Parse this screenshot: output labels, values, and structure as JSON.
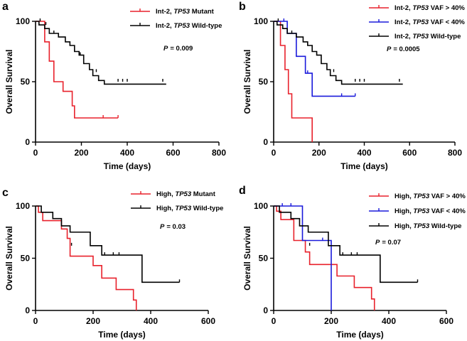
{
  "chart_data": [
    {
      "type": "line",
      "panel": "a",
      "xlabel": "Time (days)",
      "ylabel": "Overall Survival",
      "xlim": [
        0,
        800
      ],
      "ylim": [
        0,
        100
      ],
      "xticks": [
        0,
        200,
        400,
        600,
        800
      ],
      "yticks": [
        0,
        50,
        100
      ],
      "pvalue": {
        "label": "P",
        "value": "= 0.009"
      },
      "series": [
        {
          "name_prefix": "Int-2, ",
          "name_gene": "TP53",
          "name_suffix": " Mutant",
          "color": "#e8212b",
          "steps": [
            [
              0,
              100
            ],
            [
              40,
              83
            ],
            [
              60,
              67
            ],
            [
              80,
              50
            ],
            [
              120,
              42
            ],
            [
              160,
              30
            ],
            [
              170,
              20
            ],
            [
              360,
              20
            ]
          ],
          "censors": [
            [
              295,
              20
            ],
            [
              360,
              20
            ]
          ]
        },
        {
          "name_prefix": "Int-2, ",
          "name_gene": "TP53",
          "name_suffix": " Wild-type",
          "color": "#000000",
          "steps": [
            [
              0,
              100
            ],
            [
              15,
              97
            ],
            [
              40,
              94
            ],
            [
              60,
              90
            ],
            [
              100,
              87
            ],
            [
              130,
              83
            ],
            [
              150,
              80
            ],
            [
              170,
              75
            ],
            [
              190,
              72
            ],
            [
              210,
              65
            ],
            [
              235,
              60
            ],
            [
              250,
              55
            ],
            [
              275,
              51
            ],
            [
              300,
              48
            ],
            [
              570,
              48
            ]
          ],
          "censors": [
            [
              20,
              100
            ],
            [
              45,
              97
            ],
            [
              80,
              90
            ],
            [
              170,
              75
            ],
            [
              195,
              72
            ],
            [
              265,
              58
            ],
            [
              360,
              50
            ],
            [
              380,
              50
            ],
            [
              400,
              50
            ],
            [
              555,
              50
            ]
          ]
        }
      ]
    },
    {
      "type": "line",
      "panel": "b",
      "xlabel": "Time (days)",
      "ylabel": "Overall Survival",
      "xlim": [
        0,
        800
      ],
      "ylim": [
        0,
        100
      ],
      "xticks": [
        0,
        200,
        400,
        600,
        800
      ],
      "yticks": [
        0,
        50,
        100
      ],
      "pvalue": {
        "label": "P",
        "value": "= 0.0005"
      },
      "series": [
        {
          "name_prefix": "Int-2, ",
          "name_gene": "TP53",
          "name_suffix": " VAF > 40%",
          "color": "#e8212b",
          "steps": [
            [
              0,
              100
            ],
            [
              30,
              80
            ],
            [
              50,
              60
            ],
            [
              65,
              40
            ],
            [
              80,
              20
            ],
            [
              170,
              0
            ],
            [
              170,
              0
            ]
          ],
          "censors": []
        },
        {
          "name_prefix": "Int-2, ",
          "name_gene": "TP53",
          "name_suffix": " VAF < 40%",
          "color": "#1a1adb",
          "steps": [
            [
              0,
              100
            ],
            [
              60,
              90
            ],
            [
              100,
              71
            ],
            [
              140,
              57
            ],
            [
              170,
              38
            ],
            [
              360,
              38
            ]
          ],
          "censors": [
            [
              45,
              100
            ],
            [
              150,
              57
            ],
            [
              300,
              38
            ],
            [
              360,
              38
            ]
          ]
        },
        {
          "name_prefix": "Int-2, ",
          "name_gene": "TP53",
          "name_suffix": " Wild-type",
          "color": "#000000",
          "steps": [
            [
              0,
              100
            ],
            [
              15,
              97
            ],
            [
              40,
              94
            ],
            [
              60,
              90
            ],
            [
              100,
              87
            ],
            [
              130,
              83
            ],
            [
              150,
              80
            ],
            [
              170,
              75
            ],
            [
              190,
              72
            ],
            [
              210,
              65
            ],
            [
              235,
              60
            ],
            [
              250,
              55
            ],
            [
              275,
              51
            ],
            [
              300,
              48
            ],
            [
              570,
              48
            ]
          ],
          "censors": [
            [
              20,
              100
            ],
            [
              80,
              90
            ],
            [
              170,
              75
            ],
            [
              265,
              58
            ],
            [
              360,
              50
            ],
            [
              380,
              50
            ],
            [
              400,
              50
            ],
            [
              555,
              50
            ]
          ]
        }
      ]
    },
    {
      "type": "line",
      "panel": "c",
      "xlabel": "Time (days)",
      "ylabel": "Overall Survival",
      "xlim": [
        0,
        600
      ],
      "ylim": [
        0,
        100
      ],
      "xticks": [
        0,
        200,
        400,
        600
      ],
      "yticks": [
        0,
        50,
        100
      ],
      "pvalue": {
        "label": "P",
        "value": "= 0.03"
      },
      "series": [
        {
          "name_prefix": "High, ",
          "name_gene": "TP53",
          "name_suffix": " Mutant",
          "color": "#e8212b",
          "steps": [
            [
              0,
              100
            ],
            [
              10,
              94
            ],
            [
              25,
              86
            ],
            [
              90,
              78
            ],
            [
              110,
              69
            ],
            [
              120,
              52
            ],
            [
              200,
              43
            ],
            [
              230,
              31
            ],
            [
              280,
              20
            ],
            [
              340,
              10
            ],
            [
              350,
              0
            ]
          ],
          "censors": []
        },
        {
          "name_prefix": "High, ",
          "name_gene": "TP53",
          "name_suffix": "  Wild-type",
          "color": "#000000",
          "steps": [
            [
              0,
              100
            ],
            [
              20,
              94
            ],
            [
              60,
              88
            ],
            [
              90,
              81
            ],
            [
              120,
              75
            ],
            [
              190,
              62
            ],
            [
              230,
              53
            ],
            [
              370,
              27
            ],
            [
              500,
              27
            ]
          ],
          "censors": [
            [
              125,
              62
            ],
            [
              240,
              53
            ],
            [
              270,
              53
            ],
            [
              290,
              53
            ],
            [
              500,
              27
            ]
          ]
        }
      ]
    },
    {
      "type": "line",
      "panel": "d",
      "xlabel": "Time (days)",
      "ylabel": "Overall Survival",
      "xlim": [
        0,
        600
      ],
      "ylim": [
        0,
        100
      ],
      "xticks": [
        0,
        200,
        400,
        600
      ],
      "yticks": [
        0,
        50,
        100
      ],
      "pvalue": {
        "label": "P",
        "value": "= 0.07"
      },
      "series": [
        {
          "name_prefix": "High, ",
          "name_gene": "TP53",
          "name_suffix": " VAF > 40%",
          "color": "#e8212b",
          "steps": [
            [
              0,
              100
            ],
            [
              10,
              95
            ],
            [
              25,
              87
            ],
            [
              70,
              67
            ],
            [
              110,
              56
            ],
            [
              125,
              44
            ],
            [
              220,
              33
            ],
            [
              280,
              22
            ],
            [
              340,
              11
            ],
            [
              350,
              0
            ]
          ],
          "censors": []
        },
        {
          "name_prefix": "High, ",
          "name_gene": "TP53",
          "name_suffix": " VAF < 40%",
          "color": "#1a1adb",
          "steps": [
            [
              0,
              100
            ],
            [
              100,
              67
            ],
            [
              200,
              0
            ],
            [
              200,
              0
            ]
          ],
          "censors": [
            [
              30,
              100
            ],
            [
              60,
              100
            ],
            [
              170,
              67
            ]
          ]
        },
        {
          "name_prefix": "High, ",
          "name_gene": "TP53",
          "name_suffix": " Wild-type",
          "color": "#000000",
          "steps": [
            [
              0,
              100
            ],
            [
              20,
              94
            ],
            [
              60,
              88
            ],
            [
              90,
              81
            ],
            [
              120,
              75
            ],
            [
              190,
              62
            ],
            [
              230,
              53
            ],
            [
              370,
              27
            ],
            [
              500,
              27
            ]
          ],
          "censors": [
            [
              125,
              62
            ],
            [
              240,
              53
            ],
            [
              270,
              53
            ],
            [
              290,
              53
            ],
            [
              500,
              27
            ]
          ]
        }
      ]
    }
  ]
}
